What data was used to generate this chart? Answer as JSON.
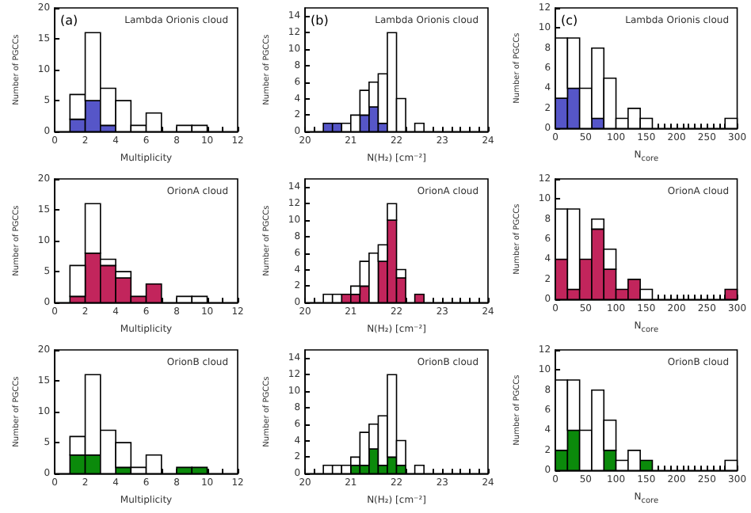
{
  "chart_data": [
    {
      "type": "bar",
      "stacked": true,
      "xlabel": "Multiplicity",
      "ylabel": "Number of PGCCs",
      "annotations": [
        "(a)",
        "Lambda Orionis cloud"
      ],
      "x": [
        1.5,
        2.5,
        3.5,
        4.5,
        5.5,
        6.5,
        7.5,
        8.5,
        9.5
      ],
      "xlim": [
        0,
        12
      ],
      "xticks": [
        0,
        {
          "value": 1,
          "label": null
        },
        2,
        {
          "value": 3,
          "label": null
        },
        4,
        {
          "value": 5,
          "label": null
        },
        6,
        {
          "value": 7,
          "label": null
        },
        8,
        {
          "value": 9,
          "label": null
        },
        10,
        {
          "value": 11,
          "label": null
        },
        12
      ],
      "ylim": [
        0,
        20
      ],
      "yticks": [
        0,
        5,
        10,
        15,
        20
      ],
      "series": [
        {
          "color": "#5656c8",
          "values": [
            2,
            5,
            1,
            0,
            0,
            0,
            0,
            0,
            0
          ]
        },
        {
          "color": "#ffffff",
          "values": [
            4,
            11,
            6,
            5,
            1,
            3,
            0,
            1,
            1
          ]
        }
      ]
    },
    {
      "type": "bar",
      "stacked": true,
      "xlabel": "N(H₂) [cm⁻²]",
      "ylabel": "Number of PGCCs",
      "annotations": [
        "(b)",
        "Lambda Orionis cloud"
      ],
      "x": [
        20.5,
        20.7,
        20.9,
        21.1,
        21.3,
        21.5,
        21.7,
        21.9,
        22.1,
        22.3,
        22.5
      ],
      "xlim": [
        20,
        24
      ],
      "xticks": [
        20,
        {
          "value": 20.2,
          "label": null
        },
        {
          "value": 20.4,
          "label": null
        },
        {
          "value": 20.6,
          "label": null
        },
        {
          "value": 20.8,
          "label": null
        },
        21,
        {
          "value": 21.2,
          "label": null
        },
        {
          "value": 21.4,
          "label": null
        },
        {
          "value": 21.6,
          "label": null
        },
        {
          "value": 21.8,
          "label": null
        },
        22,
        {
          "value": 22.2,
          "label": null
        },
        {
          "value": 22.4,
          "label": null
        },
        {
          "value": 22.6,
          "label": null
        },
        {
          "value": 22.8,
          "label": null
        },
        23,
        {
          "value": 23.2,
          "label": null
        },
        {
          "value": 23.4,
          "label": null
        },
        {
          "value": 23.6,
          "label": null
        },
        {
          "value": 23.8,
          "label": null
        },
        24
      ],
      "ylim": [
        0,
        15
      ],
      "yticks": [
        0,
        2,
        4,
        6,
        8,
        10,
        12,
        14
      ],
      "series": [
        {
          "color": "#5656c8",
          "values": [
            1,
            1,
            0,
            0,
            2,
            3,
            1,
            0,
            0,
            0,
            0
          ]
        },
        {
          "color": "#ffffff",
          "values": [
            0,
            0,
            1,
            2,
            3,
            3,
            6,
            12,
            4,
            0,
            1
          ]
        }
      ]
    },
    {
      "type": "bar",
      "stacked": true,
      "xlabel": "N$_{core}$",
      "ylabel": "Number of PGCCs",
      "annotations": [
        "(c)",
        "Lambda Orionis cloud"
      ],
      "x": [
        10,
        30,
        50,
        70,
        90,
        110,
        130,
        150,
        170,
        190,
        210,
        230,
        250,
        270,
        290
      ],
      "xlim": [
        0,
        300
      ],
      "xticks": [
        0,
        {
          "value": 10,
          "label": null
        },
        {
          "value": 20,
          "label": null
        },
        {
          "value": 30,
          "label": null
        },
        {
          "value": 40,
          "label": null
        },
        50,
        {
          "value": 60,
          "label": null
        },
        {
          "value": 70,
          "label": null
        },
        {
          "value": 80,
          "label": null
        },
        {
          "value": 90,
          "label": null
        },
        100,
        {
          "value": 110,
          "label": null
        },
        {
          "value": 120,
          "label": null
        },
        {
          "value": 130,
          "label": null
        },
        {
          "value": 140,
          "label": null
        },
        150,
        {
          "value": 160,
          "label": null
        },
        {
          "value": 170,
          "label": null
        },
        {
          "value": 180,
          "label": null
        },
        {
          "value": 190,
          "label": null
        },
        200,
        {
          "value": 210,
          "label": null
        },
        {
          "value": 220,
          "label": null
        },
        {
          "value": 230,
          "label": null
        },
        {
          "value": 240,
          "label": null
        },
        250,
        {
          "value": 260,
          "label": null
        },
        {
          "value": 270,
          "label": null
        },
        {
          "value": 280,
          "label": null
        },
        {
          "value": 290,
          "label": null
        },
        300
      ],
      "ylim": [
        0,
        12
      ],
      "yticks": [
        0,
        2,
        4,
        6,
        8,
        10,
        12
      ],
      "series": [
        {
          "color": "#5656c8",
          "values": [
            3,
            4,
            0,
            1,
            0,
            0,
            0,
            0,
            0,
            0,
            0,
            0,
            0,
            0,
            0
          ]
        },
        {
          "color": "#ffffff",
          "values": [
            6,
            5,
            4,
            7,
            5,
            1,
            2,
            1,
            0,
            0,
            0,
            0,
            0,
            0,
            1
          ]
        }
      ]
    },
    {
      "type": "bar",
      "stacked": true,
      "xlabel": "Multiplicity",
      "ylabel": "Number of PGCCs",
      "annotations": [
        "OrionA cloud"
      ],
      "x": [
        1.5,
        2.5,
        3.5,
        4.5,
        5.5,
        6.5,
        7.5,
        8.5,
        9.5
      ],
      "xlim": [
        0,
        12
      ],
      "xticks": [
        0,
        {
          "value": 1,
          "label": null
        },
        2,
        {
          "value": 3,
          "label": null
        },
        4,
        {
          "value": 5,
          "label": null
        },
        6,
        {
          "value": 7,
          "label": null
        },
        8,
        {
          "value": 9,
          "label": null
        },
        10,
        {
          "value": 11,
          "label": null
        },
        12
      ],
      "ylim": [
        0,
        20
      ],
      "yticks": [
        0,
        5,
        10,
        15,
        20
      ],
      "series": [
        {
          "color": "#c2255c",
          "values": [
            1,
            8,
            6,
            4,
            1,
            3,
            0,
            0,
            0
          ]
        },
        {
          "color": "#ffffff",
          "values": [
            5,
            8,
            1,
            1,
            0,
            0,
            0,
            1,
            1
          ]
        }
      ]
    },
    {
      "type": "bar",
      "stacked": true,
      "xlabel": "N(H₂) [cm⁻²]",
      "ylabel": "Number of PGCCs",
      "annotations": [
        "OrionA cloud"
      ],
      "x": [
        20.5,
        20.7,
        20.9,
        21.1,
        21.3,
        21.5,
        21.7,
        21.9,
        22.1,
        22.3,
        22.5
      ],
      "xlim": [
        20,
        24
      ],
      "xticks": [
        20,
        {
          "value": 20.2,
          "label": null
        },
        {
          "value": 20.4,
          "label": null
        },
        {
          "value": 20.6,
          "label": null
        },
        {
          "value": 20.8,
          "label": null
        },
        21,
        {
          "value": 21.2,
          "label": null
        },
        {
          "value": 21.4,
          "label": null
        },
        {
          "value": 21.6,
          "label": null
        },
        {
          "value": 21.8,
          "label": null
        },
        22,
        {
          "value": 22.2,
          "label": null
        },
        {
          "value": 22.4,
          "label": null
        },
        {
          "value": 22.6,
          "label": null
        },
        {
          "value": 22.8,
          "label": null
        },
        23,
        {
          "value": 23.2,
          "label": null
        },
        {
          "value": 23.4,
          "label": null
        },
        {
          "value": 23.6,
          "label": null
        },
        {
          "value": 23.8,
          "label": null
        },
        24
      ],
      "ylim": [
        0,
        15
      ],
      "yticks": [
        0,
        2,
        4,
        6,
        8,
        10,
        12,
        14
      ],
      "series": [
        {
          "color": "#c2255c",
          "values": [
            0,
            0,
            1,
            1,
            2,
            0,
            5,
            10,
            3,
            0,
            1
          ]
        },
        {
          "color": "#ffffff",
          "values": [
            1,
            1,
            0,
            1,
            3,
            6,
            2,
            2,
            1,
            0,
            0
          ]
        }
      ]
    },
    {
      "type": "bar",
      "stacked": true,
      "xlabel": "N$_{core}$",
      "ylabel": "Number of PGCCs",
      "annotations": [
        "OrionA cloud"
      ],
      "x": [
        10,
        30,
        50,
        70,
        90,
        110,
        130,
        150,
        170,
        190,
        210,
        230,
        250,
        270,
        290
      ],
      "xlim": [
        0,
        300
      ],
      "xticks": [
        0,
        {
          "value": 10,
          "label": null
        },
        {
          "value": 20,
          "label": null
        },
        {
          "value": 30,
          "label": null
        },
        {
          "value": 40,
          "label": null
        },
        50,
        {
          "value": 60,
          "label": null
        },
        {
          "value": 70,
          "label": null
        },
        {
          "value": 80,
          "label": null
        },
        {
          "value": 90,
          "label": null
        },
        100,
        {
          "value": 110,
          "label": null
        },
        {
          "value": 120,
          "label": null
        },
        {
          "value": 130,
          "label": null
        },
        {
          "value": 140,
          "label": null
        },
        150,
        {
          "value": 160,
          "label": null
        },
        {
          "value": 170,
          "label": null
        },
        {
          "value": 180,
          "label": null
        },
        {
          "value": 190,
          "label": null
        },
        200,
        {
          "value": 210,
          "label": null
        },
        {
          "value": 220,
          "label": null
        },
        {
          "value": 230,
          "label": null
        },
        {
          "value": 240,
          "label": null
        },
        250,
        {
          "value": 260,
          "label": null
        },
        {
          "value": 270,
          "label": null
        },
        {
          "value": 280,
          "label": null
        },
        {
          "value": 290,
          "label": null
        },
        300
      ],
      "ylim": [
        0,
        12
      ],
      "yticks": [
        0,
        2,
        4,
        6,
        8,
        10,
        12
      ],
      "series": [
        {
          "color": "#c2255c",
          "values": [
            4,
            1,
            4,
            7,
            3,
            1,
            2,
            0,
            0,
            0,
            0,
            0,
            0,
            0,
            1
          ]
        },
        {
          "color": "#ffffff",
          "values": [
            5,
            8,
            0,
            1,
            2,
            0,
            0,
            1,
            0,
            0,
            0,
            0,
            0,
            0,
            0
          ]
        }
      ]
    },
    {
      "type": "bar",
      "stacked": true,
      "xlabel": "Multiplicity",
      "ylabel": "Number of PGCCs",
      "annotations": [
        "OrionB cloud"
      ],
      "x": [
        1.5,
        2.5,
        3.5,
        4.5,
        5.5,
        6.5,
        7.5,
        8.5,
        9.5
      ],
      "xlim": [
        0,
        12
      ],
      "xticks": [
        0,
        {
          "value": 1,
          "label": null
        },
        2,
        {
          "value": 3,
          "label": null
        },
        4,
        {
          "value": 5,
          "label": null
        },
        6,
        {
          "value": 7,
          "label": null
        },
        8,
        {
          "value": 9,
          "label": null
        },
        10,
        {
          "value": 11,
          "label": null
        },
        12
      ],
      "ylim": [
        0,
        20
      ],
      "yticks": [
        0,
        5,
        10,
        15,
        20
      ],
      "series": [
        {
          "color": "#0b8a0b",
          "values": [
            3,
            3,
            0,
            1,
            0,
            0,
            0,
            1,
            1
          ]
        },
        {
          "color": "#ffffff",
          "values": [
            3,
            13,
            7,
            4,
            1,
            3,
            0,
            0,
            0
          ]
        }
      ]
    },
    {
      "type": "bar",
      "stacked": true,
      "xlabel": "N(H₂) [cm⁻²]",
      "ylabel": "Number of PGCCs",
      "annotations": [
        "OrionB cloud"
      ],
      "x": [
        20.5,
        20.7,
        20.9,
        21.1,
        21.3,
        21.5,
        21.7,
        21.9,
        22.1,
        22.3,
        22.5
      ],
      "xlim": [
        20,
        24
      ],
      "xticks": [
        20,
        {
          "value": 20.2,
          "label": null
        },
        {
          "value": 20.4,
          "label": null
        },
        {
          "value": 20.6,
          "label": null
        },
        {
          "value": 20.8,
          "label": null
        },
        21,
        {
          "value": 21.2,
          "label": null
        },
        {
          "value": 21.4,
          "label": null
        },
        {
          "value": 21.6,
          "label": null
        },
        {
          "value": 21.8,
          "label": null
        },
        22,
        {
          "value": 22.2,
          "label": null
        },
        {
          "value": 22.4,
          "label": null
        },
        {
          "value": 22.6,
          "label": null
        },
        {
          "value": 22.8,
          "label": null
        },
        23,
        {
          "value": 23.2,
          "label": null
        },
        {
          "value": 23.4,
          "label": null
        },
        {
          "value": 23.6,
          "label": null
        },
        {
          "value": 23.8,
          "label": null
        },
        24
      ],
      "ylim": [
        0,
        15
      ],
      "yticks": [
        0,
        2,
        4,
        6,
        8,
        10,
        12,
        14
      ],
      "series": [
        {
          "color": "#0b8a0b",
          "values": [
            0,
            0,
            0,
            1,
            1,
            3,
            1,
            2,
            1,
            0,
            0
          ]
        },
        {
          "color": "#ffffff",
          "values": [
            1,
            1,
            1,
            1,
            4,
            3,
            6,
            10,
            3,
            0,
            1
          ]
        }
      ]
    },
    {
      "type": "bar",
      "stacked": true,
      "xlabel": "N$_{core}$",
      "ylabel": "Number of PGCCs",
      "annotations": [
        "OrionB cloud"
      ],
      "x": [
        10,
        30,
        50,
        70,
        90,
        110,
        130,
        150,
        170,
        190,
        210,
        230,
        250,
        270,
        290
      ],
      "xlim": [
        0,
        300
      ],
      "xticks": [
        0,
        {
          "value": 10,
          "label": null
        },
        {
          "value": 20,
          "label": null
        },
        {
          "value": 30,
          "label": null
        },
        {
          "value": 40,
          "label": null
        },
        50,
        {
          "value": 60,
          "label": null
        },
        {
          "value": 70,
          "label": null
        },
        {
          "value": 80,
          "label": null
        },
        {
          "value": 90,
          "label": null
        },
        100,
        {
          "value": 110,
          "label": null
        },
        {
          "value": 120,
          "label": null
        },
        {
          "value": 130,
          "label": null
        },
        {
          "value": 140,
          "label": null
        },
        150,
        {
          "value": 160,
          "label": null
        },
        {
          "value": 170,
          "label": null
        },
        {
          "value": 180,
          "label": null
        },
        {
          "value": 190,
          "label": null
        },
        200,
        {
          "value": 210,
          "label": null
        },
        {
          "value": 220,
          "label": null
        },
        {
          "value": 230,
          "label": null
        },
        {
          "value": 240,
          "label": null
        },
        250,
        {
          "value": 260,
          "label": null
        },
        {
          "value": 270,
          "label": null
        },
        {
          "value": 280,
          "label": null
        },
        {
          "value": 290,
          "label": null
        },
        300
      ],
      "ylim": [
        0,
        12
      ],
      "yticks": [
        0,
        2,
        4,
        6,
        8,
        10,
        12
      ],
      "series": [
        {
          "color": "#0b8a0b",
          "values": [
            2,
            4,
            0,
            0,
            2,
            0,
            0,
            1,
            0,
            0,
            0,
            0,
            0,
            0,
            0
          ]
        },
        {
          "color": "#ffffff",
          "values": [
            7,
            5,
            4,
            8,
            3,
            1,
            2,
            0,
            0,
            0,
            0,
            0,
            0,
            0,
            1
          ]
        }
      ]
    }
  ]
}
